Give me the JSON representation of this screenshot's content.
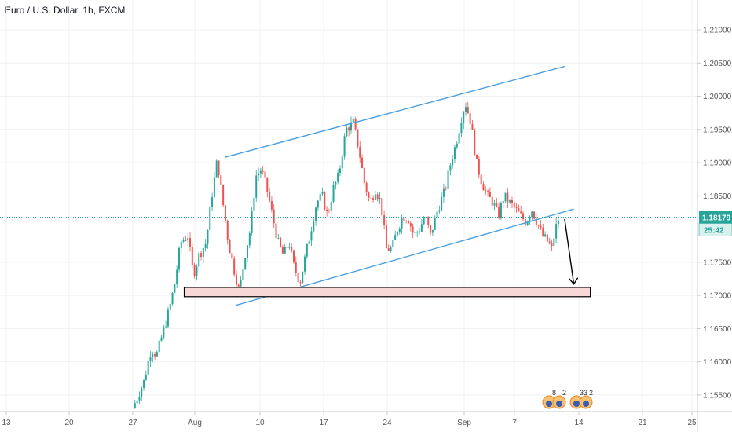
{
  "chart_data": {
    "type": "candlestick",
    "title": "Euro / U.S. Dollar, 1h, FXCM",
    "x_tick_labels": [
      "13",
      "20",
      "27",
      "Aug",
      "10",
      "17",
      "24",
      "Sep",
      "7",
      "14",
      "21",
      "25"
    ],
    "y_tick_labels": [
      "1.21000",
      "1.20500",
      "1.20000",
      "1.19500",
      "1.19000",
      "1.18500",
      "1.18179",
      "1.17500",
      "1.17000",
      "1.16500",
      "1.16000",
      "1.15500"
    ],
    "ylim": [
      1.1525,
      1.2145
    ],
    "grid": true,
    "price_label": {
      "value": "1.18179",
      "color": "#26a69a"
    },
    "countdown_label": {
      "value": "25:42",
      "color": "#26a69a"
    },
    "colors": {
      "up": "#26a69a",
      "down": "#ef5350",
      "trendline": "#4a9fe0",
      "zone_fill": "#f8d7d7",
      "arrow": "#000000",
      "price_line": "#26a69a"
    },
    "path": [
      [
        0.0,
        1.153
      ],
      [
        0.6,
        1.157
      ],
      [
        1.0,
        1.162
      ],
      [
        1.3,
        1.161
      ],
      [
        1.6,
        1.164
      ],
      [
        2.0,
        1.168
      ],
      [
        2.3,
        1.172
      ],
      [
        2.6,
        1.178
      ],
      [
        3.0,
        1.179
      ],
      [
        3.3,
        1.173
      ],
      [
        3.6,
        1.176
      ],
      [
        4.0,
        1.178
      ],
      [
        4.3,
        1.185
      ],
      [
        4.6,
        1.1905
      ],
      [
        4.9,
        1.184
      ],
      [
        5.2,
        1.178
      ],
      [
        5.5,
        1.174
      ],
      [
        5.8,
        1.1705
      ],
      [
        6.1,
        1.176
      ],
      [
        6.4,
        1.18
      ],
      [
        6.7,
        1.188
      ],
      [
        7.0,
        1.189
      ],
      [
        7.3,
        1.186
      ],
      [
        7.6,
        1.182
      ],
      [
        7.9,
        1.178
      ],
      [
        8.2,
        1.176
      ],
      [
        8.5,
        1.178
      ],
      [
        8.8,
        1.174
      ],
      [
        9.1,
        1.172
      ],
      [
        9.4,
        1.176
      ],
      [
        9.7,
        1.18
      ],
      [
        10.0,
        1.184
      ],
      [
        10.3,
        1.185
      ],
      [
        10.6,
        1.182
      ],
      [
        10.9,
        1.186
      ],
      [
        11.2,
        1.188
      ],
      [
        11.6,
        1.195
      ],
      [
        12.0,
        1.196
      ],
      [
        12.3,
        1.192
      ],
      [
        12.6,
        1.187
      ],
      [
        12.9,
        1.184
      ],
      [
        13.2,
        1.186
      ],
      [
        13.5,
        1.184
      ],
      [
        13.8,
        1.177
      ],
      [
        14.1,
        1.177
      ],
      [
        14.4,
        1.18
      ],
      [
        14.7,
        1.182
      ],
      [
        15.0,
        1.1815
      ],
      [
        15.3,
        1.179
      ],
      [
        15.6,
        1.18
      ],
      [
        15.9,
        1.182
      ],
      [
        16.2,
        1.179
      ],
      [
        16.6,
        1.183
      ],
      [
        17.0,
        1.186
      ],
      [
        17.3,
        1.19
      ],
      [
        17.6,
        1.193
      ],
      [
        17.9,
        1.197
      ],
      [
        18.1,
        1.199
      ],
      [
        18.4,
        1.196
      ],
      [
        18.7,
        1.19
      ],
      [
        19.0,
        1.187
      ],
      [
        19.3,
        1.185
      ],
      [
        19.6,
        1.184
      ],
      [
        19.9,
        1.182
      ],
      [
        20.2,
        1.185
      ],
      [
        20.5,
        1.184
      ],
      [
        20.8,
        1.183
      ],
      [
        21.1,
        1.182
      ],
      [
        21.4,
        1.181
      ],
      [
        21.7,
        1.183
      ],
      [
        22.0,
        1.181
      ],
      [
        22.3,
        1.179
      ],
      [
        22.6,
        1.178
      ],
      [
        22.8,
        1.177
      ],
      [
        23.0,
        1.18
      ],
      [
        23.2,
        1.1818
      ]
    ],
    "annotations": [
      {
        "name": "upper-channel-line",
        "from": [
          5.0,
          1.1908
        ],
        "to": [
          23.5,
          1.2045
        ]
      },
      {
        "name": "lower-channel-line",
        "from": [
          5.6,
          1.1685
        ],
        "to": [
          24.0,
          1.183
        ]
      },
      {
        "name": "support-zone",
        "from": [
          2.8,
          1.1712
        ],
        "to": [
          24.9,
          1.1698
        ]
      },
      {
        "name": "down-arrow",
        "from": [
          23.5,
          1.1815
        ],
        "to": [
          24.0,
          1.1717
        ]
      }
    ],
    "event_markers": [
      "8",
      "2",
      "33",
      "2"
    ]
  }
}
